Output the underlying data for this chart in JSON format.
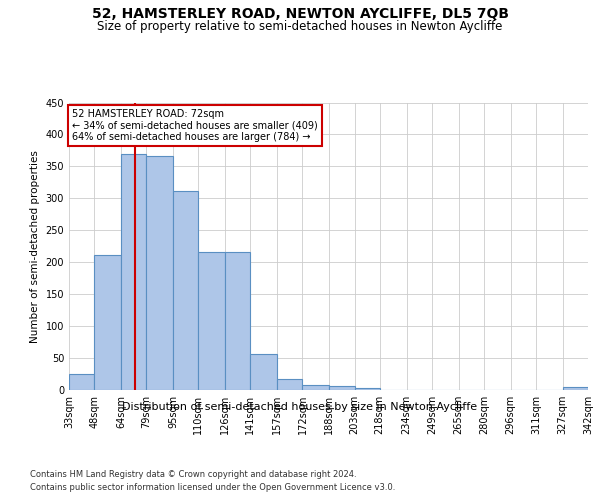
{
  "title1": "52, HAMSTERLEY ROAD, NEWTON AYCLIFFE, DL5 7QB",
  "title2": "Size of property relative to semi-detached houses in Newton Aycliffe",
  "xlabel": "Distribution of semi-detached houses by size in Newton Aycliffe",
  "ylabel": "Number of semi-detached properties",
  "footnote1": "Contains HM Land Registry data © Crown copyright and database right 2024.",
  "footnote2": "Contains public sector information licensed under the Open Government Licence v3.0.",
  "bar_edges": [
    33,
    48,
    64,
    79,
    95,
    110,
    126,
    141,
    157,
    172,
    188,
    203,
    218,
    234,
    249,
    265,
    280,
    296,
    311,
    327,
    342
  ],
  "bar_heights": [
    25,
    212,
    369,
    367,
    311,
    216,
    216,
    57,
    18,
    8,
    6,
    3,
    0,
    0,
    0,
    0,
    0,
    0,
    0,
    4
  ],
  "bar_color": "#aec6e8",
  "bar_edgecolor": "#5a8fc2",
  "property_size": 72,
  "vline_color": "#cc0000",
  "annotation_line1": "52 HAMSTERLEY ROAD: 72sqm",
  "annotation_line2": "← 34% of semi-detached houses are smaller (409)",
  "annotation_line3": "64% of semi-detached houses are larger (784) →",
  "annotation_box_edgecolor": "#cc0000",
  "annotation_box_facecolor": "#ffffff",
  "ylim": [
    0,
    450
  ],
  "yticks": [
    0,
    50,
    100,
    150,
    200,
    250,
    300,
    350,
    400,
    450
  ],
  "bg_color": "#ffffff",
  "grid_color": "#cccccc",
  "title1_fontsize": 10,
  "title2_fontsize": 8.5,
  "xlabel_fontsize": 8,
  "ylabel_fontsize": 7.5,
  "footnote_fontsize": 6,
  "tick_fontsize": 7
}
